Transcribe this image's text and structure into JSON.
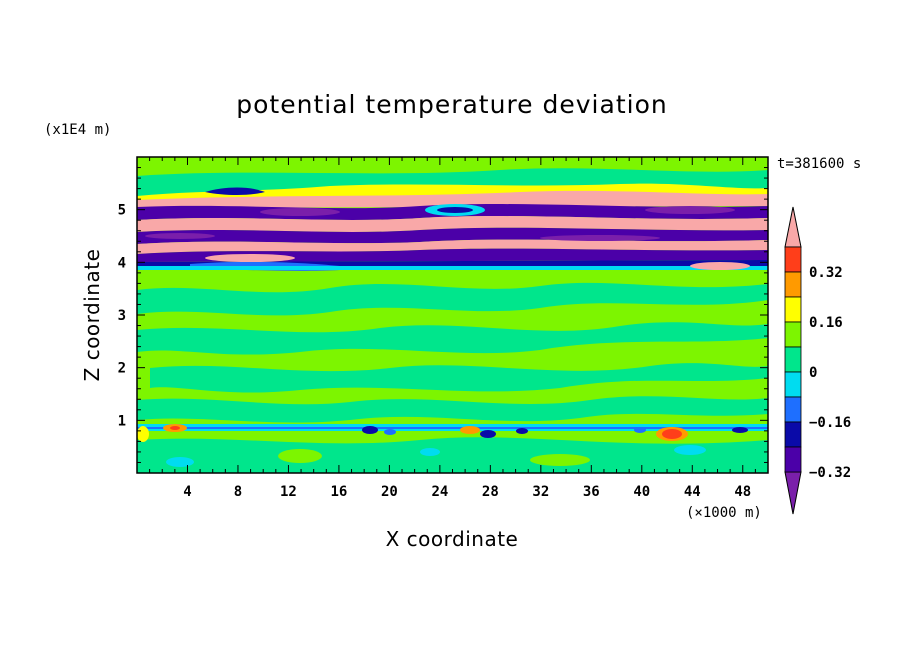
{
  "chart_data": {
    "type": "heatmap",
    "title": "potential temperature deviation",
    "xlabel": "X coordinate",
    "ylabel": "Z coordinate",
    "x_unit": "(×1000 m)",
    "y_unit": "(x1E4 m)",
    "time_label": "t=381600 s",
    "xlim": [
      0,
      50
    ],
    "ylim": [
      0,
      6
    ],
    "x_ticks": [
      4,
      8,
      12,
      16,
      20,
      24,
      28,
      32,
      36,
      40,
      44,
      48
    ],
    "y_ticks": [
      1,
      2,
      3,
      4,
      5
    ],
    "colorbar": {
      "levels": [
        -0.4,
        -0.32,
        -0.24,
        -0.16,
        -0.08,
        0,
        0.08,
        0.16,
        0.24,
        0.32,
        0.4
      ],
      "labeled": [
        "0.32",
        "0.16",
        "0",
        "−0.16",
        "−0.32"
      ],
      "colors": [
        "#7a1faa",
        "#4b00a8",
        "#0a0aa8",
        "#1e6fff",
        "#00dcf0",
        "#00e68c",
        "#7df500",
        "#ffff00",
        "#ff9a00",
        "#ff3e1a",
        "#f9a8a8"
      ]
    },
    "bands": [
      {
        "z": [
          3.85,
          5.85
        ],
        "pattern": "alternating strong positive (pink) and strong negative (purple) layers"
      },
      {
        "z": [
          0.8,
          0.95
        ],
        "pattern": "thin mixed layer with small extremes"
      },
      {
        "z": [
          0,
          3.85
        ],
        "pattern": "weak near-zero deviations (green)"
      }
    ]
  }
}
